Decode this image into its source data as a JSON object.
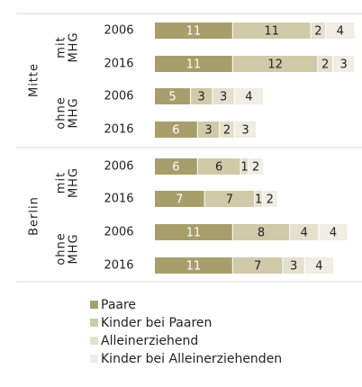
{
  "chart_data": {
    "type": "bar",
    "orientation": "horizontal",
    "stacked": true,
    "categories": [
      "2006",
      "2016",
      "2006",
      "2016",
      "2006",
      "2016",
      "2006",
      "2016"
    ],
    "groups": [
      {
        "label": "Mitte",
        "subgroups": [
          {
            "label": [
              "mit",
              "MHG"
            ]
          },
          {
            "label": [
              "ohne",
              "MHG"
            ]
          }
        ]
      },
      {
        "label": "Berlin",
        "subgroups": [
          {
            "label": [
              "mit",
              "MHG"
            ]
          },
          {
            "label": [
              "ohne",
              "MHG"
            ]
          }
        ]
      }
    ],
    "series": [
      {
        "name": "Paare",
        "color": "#a79e6c",
        "values": [
          11,
          11,
          5,
          6,
          6,
          7,
          11,
          11
        ]
      },
      {
        "name": "Kinder bei Paaren",
        "color": "#d0caa9",
        "values": [
          11,
          12,
          3,
          3,
          6,
          7,
          8,
          7
        ]
      },
      {
        "name": "Alleinerziehend",
        "color": "#e3e0cd",
        "values": [
          2,
          2,
          3,
          2,
          1,
          1,
          4,
          3
        ]
      },
      {
        "name": "Kinder bei Alleinerziehenden",
        "color": "#efede4",
        "values": [
          4,
          3,
          4,
          3,
          2,
          2,
          4,
          4
        ]
      }
    ]
  }
}
